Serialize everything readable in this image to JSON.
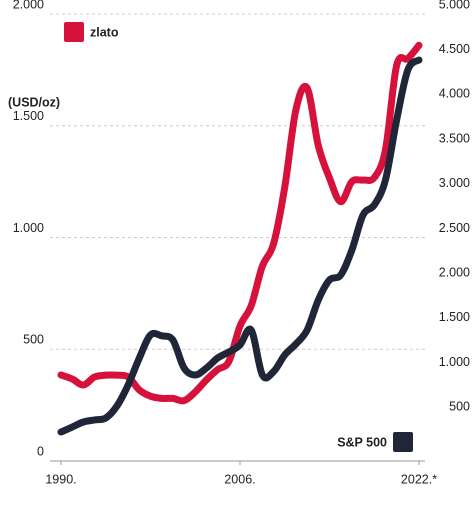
{
  "chart_data": {
    "type": "line",
    "ylabel": "(USD/oz)",
    "x": [
      1990,
      1991,
      1992,
      1993,
      1994,
      1995,
      1996,
      1997,
      1998,
      1999,
      2000,
      2001,
      2002,
      2003,
      2004,
      2005,
      2006,
      2007,
      2008,
      2009,
      2010,
      2011,
      2012,
      2013,
      2014,
      2015,
      2016,
      2017,
      2018,
      2019,
      2020,
      2021,
      2022
    ],
    "xlim": [
      1990,
      2022
    ],
    "xticks": [
      {
        "value": 1990,
        "label": "1990."
      },
      {
        "value": 2006,
        "label": "2006."
      },
      {
        "value": 2022,
        "label": "2022.*"
      }
    ],
    "ylim": [
      0,
      2000
    ],
    "yticks": [
      0,
      500,
      {
        "value": 1000,
        "label": "1.000"
      },
      {
        "value": 1500,
        "label": "1.500"
      },
      {
        "value": 2000,
        "label": "2.000"
      }
    ],
    "y2lim": [
      0,
      5000
    ],
    "y2ticks": [
      500,
      {
        "value": 1000,
        "label": "1.000"
      },
      {
        "value": 1500,
        "label": "1.500"
      },
      {
        "value": 2000,
        "label": "2.000"
      },
      {
        "value": 2500,
        "label": "2.500"
      },
      {
        "value": 3000,
        "label": "3.000"
      },
      {
        "value": 3500,
        "label": "3.500"
      },
      {
        "value": 4000,
        "label": "4.000"
      },
      {
        "value": 4500,
        "label": "4.500"
      },
      {
        "value": 5000,
        "label": "5.000"
      }
    ],
    "grid": true,
    "series": [
      {
        "name": "zlato",
        "color": "#d6123c",
        "values": [
          385,
          367,
          340,
          376,
          384,
          384,
          376,
          318,
          290,
          280,
          280,
          270,
          309,
          363,
          409,
          445,
          604,
          695,
          872,
          972,
          1225,
          1572,
          1669,
          1411,
          1266,
          1160,
          1250,
          1257,
          1268,
          1392,
          1770,
          1800,
          1860
        ]
      },
      {
        "name": "S&P 500",
        "color": "#1f2637",
        "axis": "y2",
        "values": [
          324,
          380,
          436,
          459,
          481,
          615,
          850,
          1152,
          1409,
          1400,
          1353,
          1040,
          962,
          1040,
          1152,
          1219,
          1298,
          1465,
          962,
          1000,
          1186,
          1309,
          1465,
          1801,
          2025,
          2080,
          2360,
          2752,
          2864,
          3143,
          3814,
          4374,
          4485
        ]
      }
    ]
  }
}
